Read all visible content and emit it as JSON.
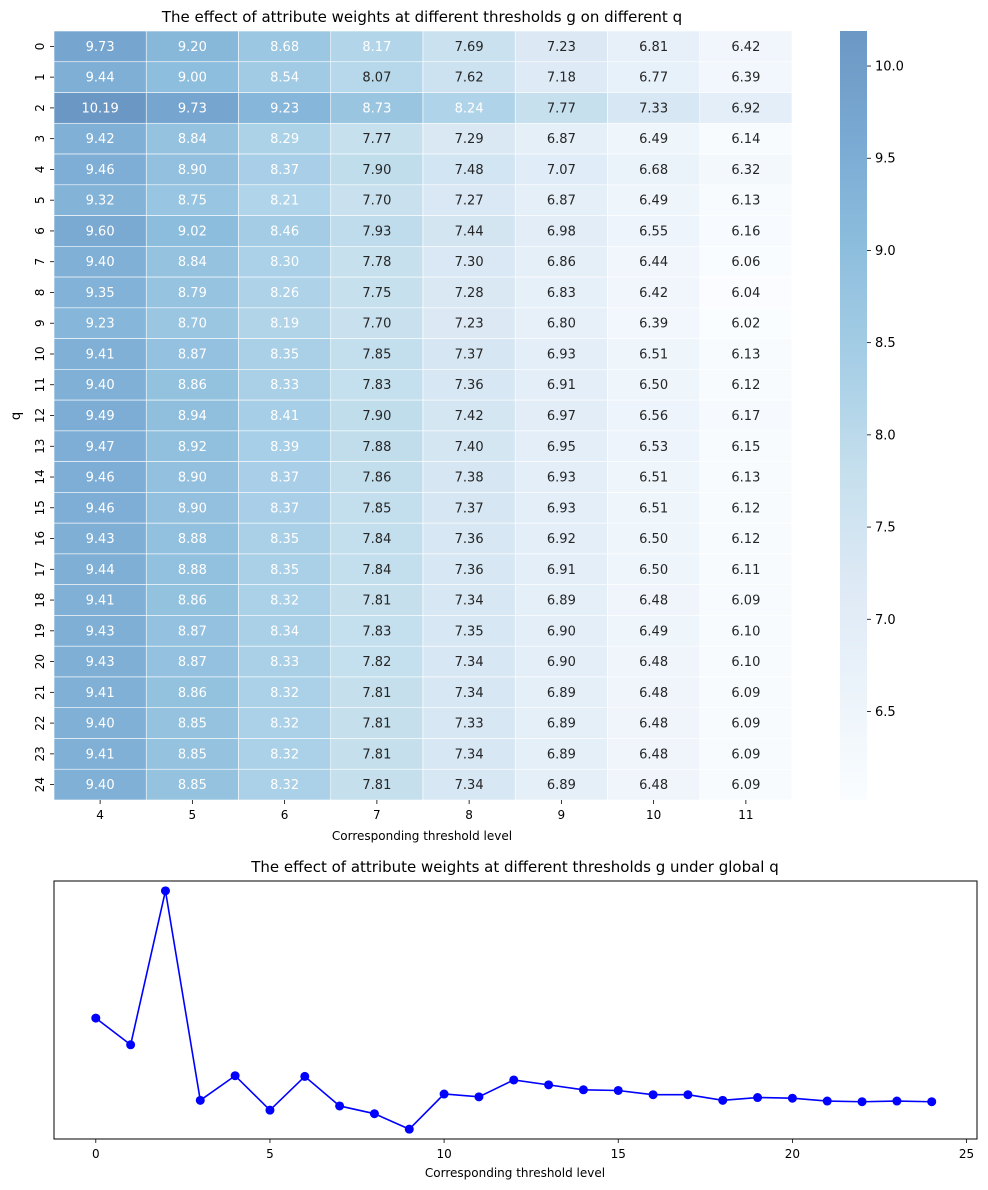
{
  "chart_data": [
    {
      "type": "heatmap",
      "title": "The effect of attribute weights at different thresholds g on different q",
      "xlabel": "Corresponding threshold level",
      "ylabel": "q",
      "x_categories": [
        "4",
        "5",
        "6",
        "7",
        "8",
        "9",
        "10",
        "11"
      ],
      "y_categories": [
        "0",
        "1",
        "2",
        "3",
        "4",
        "5",
        "6",
        "7",
        "8",
        "9",
        "10",
        "11",
        "12",
        "13",
        "14",
        "15",
        "16",
        "17",
        "18",
        "19",
        "20",
        "21",
        "22",
        "23",
        "24"
      ],
      "values": [
        [
          "9.73",
          "9.20",
          "8.68",
          "8.17",
          "7.69",
          "7.23",
          "6.81",
          "6.42"
        ],
        [
          "9.44",
          "9.00",
          "8.54",
          "8.07",
          "7.62",
          "7.18",
          "6.77",
          "6.39"
        ],
        [
          "10.19",
          "9.73",
          "9.23",
          "8.73",
          "8.24",
          "7.77",
          "7.33",
          "6.92"
        ],
        [
          "9.42",
          "8.84",
          "8.29",
          "7.77",
          "7.29",
          "6.87",
          "6.49",
          "6.14"
        ],
        [
          "9.46",
          "8.90",
          "8.37",
          "7.90",
          "7.48",
          "7.07",
          "6.68",
          "6.32"
        ],
        [
          "9.32",
          "8.75",
          "8.21",
          "7.70",
          "7.27",
          "6.87",
          "6.49",
          "6.13"
        ],
        [
          "9.60",
          "9.02",
          "8.46",
          "7.93",
          "7.44",
          "6.98",
          "6.55",
          "6.16"
        ],
        [
          "9.40",
          "8.84",
          "8.30",
          "7.78",
          "7.30",
          "6.86",
          "6.44",
          "6.06"
        ],
        [
          "9.35",
          "8.79",
          "8.26",
          "7.75",
          "7.28",
          "6.83",
          "6.42",
          "6.04"
        ],
        [
          "9.23",
          "8.70",
          "8.19",
          "7.70",
          "7.23",
          "6.80",
          "6.39",
          "6.02"
        ],
        [
          "9.41",
          "8.87",
          "8.35",
          "7.85",
          "7.37",
          "6.93",
          "6.51",
          "6.13"
        ],
        [
          "9.40",
          "8.86",
          "8.33",
          "7.83",
          "7.36",
          "6.91",
          "6.50",
          "6.12"
        ],
        [
          "9.49",
          "8.94",
          "8.41",
          "7.90",
          "7.42",
          "6.97",
          "6.56",
          "6.17"
        ],
        [
          "9.47",
          "8.92",
          "8.39",
          "7.88",
          "7.40",
          "6.95",
          "6.53",
          "6.15"
        ],
        [
          "9.46",
          "8.90",
          "8.37",
          "7.86",
          "7.38",
          "6.93",
          "6.51",
          "6.13"
        ],
        [
          "9.46",
          "8.90",
          "8.37",
          "7.85",
          "7.37",
          "6.93",
          "6.51",
          "6.12"
        ],
        [
          "9.43",
          "8.88",
          "8.35",
          "7.84",
          "7.36",
          "6.92",
          "6.50",
          "6.12"
        ],
        [
          "9.44",
          "8.88",
          "8.35",
          "7.84",
          "7.36",
          "6.91",
          "6.50",
          "6.11"
        ],
        [
          "9.41",
          "8.86",
          "8.32",
          "7.81",
          "7.34",
          "6.89",
          "6.48",
          "6.09"
        ],
        [
          "9.43",
          "8.87",
          "8.34",
          "7.83",
          "7.35",
          "6.90",
          "6.49",
          "6.10"
        ],
        [
          "9.43",
          "8.87",
          "8.33",
          "7.82",
          "7.34",
          "6.90",
          "6.48",
          "6.10"
        ],
        [
          "9.41",
          "8.86",
          "8.32",
          "7.81",
          "7.34",
          "6.89",
          "6.48",
          "6.09"
        ],
        [
          "9.40",
          "8.85",
          "8.32",
          "7.81",
          "7.33",
          "6.89",
          "6.48",
          "6.09"
        ],
        [
          "9.41",
          "8.85",
          "8.32",
          "7.81",
          "7.34",
          "6.89",
          "6.48",
          "6.09"
        ],
        [
          "9.40",
          "8.85",
          "8.32",
          "7.81",
          "7.34",
          "6.89",
          "6.48",
          "6.09"
        ]
      ],
      "colorbar": {
        "range": [
          6.02,
          10.19
        ],
        "ticks": [
          "6.5",
          "7.0",
          "7.5",
          "8.0",
          "8.5",
          "9.0",
          "9.5",
          "10.0"
        ],
        "colormap": [
          "#f7fbff",
          "#deebf7",
          "#c6dbef",
          "#9ecae1",
          "#6baed6",
          "#4292c6",
          "#2171b5",
          "#08519c"
        ],
        "alpha": 0.6
      },
      "grid": false,
      "legend": "colorbar-right"
    },
    {
      "type": "line",
      "title": "The effect of attribute weights at different thresholds g under global q",
      "xlabel": "Corresponding threshold level",
      "ylabel": "",
      "x": [
        0,
        1,
        2,
        3,
        4,
        5,
        6,
        7,
        8,
        9,
        10,
        11,
        12,
        13,
        14,
        15,
        16,
        17,
        18,
        19,
        20,
        21,
        22,
        23,
        24
      ],
      "y": [
        8.79,
        8.41,
        10.6,
        7.62,
        7.97,
        7.48,
        7.96,
        7.54,
        7.43,
        7.21,
        7.71,
        7.67,
        7.91,
        7.84,
        7.77,
        7.76,
        7.7,
        7.7,
        7.62,
        7.66,
        7.65,
        7.61,
        7.6,
        7.61,
        7.6
      ],
      "xticks": [
        "0",
        "5",
        "10",
        "15",
        "20",
        "25"
      ],
      "xlim": [
        -1.2,
        25.3
      ],
      "ylim": [
        7.07,
        10.74
      ],
      "color": "#0000ff",
      "marker": "circle",
      "grid": false,
      "legend": "none"
    }
  ]
}
